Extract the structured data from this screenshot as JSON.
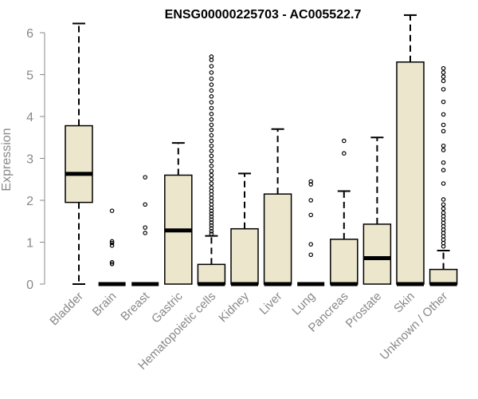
{
  "chart_data": {
    "type": "boxplot",
    "title": "ENSG00000225703 - AC005522.7",
    "xlabel": "",
    "ylabel": "Expression",
    "ylim": [
      0,
      6.4
    ],
    "yticks": [
      0,
      1,
      2,
      3,
      4,
      5,
      6
    ],
    "box_fill": "#ece6cc",
    "box_stroke": "#000000",
    "categories": [
      "Bladder",
      "Brain",
      "Breast",
      "Gastric",
      "Hematopoietic cells",
      "Kidney",
      "Liver",
      "Lung",
      "Pancreas",
      "Prostate",
      "Skin",
      "Unknown / Other"
    ],
    "boxes": [
      {
        "min": 0,
        "q1": 1.95,
        "median": 2.63,
        "q3": 3.78,
        "max": 6.22,
        "outliers": []
      },
      {
        "min": 0,
        "q1": 0,
        "median": 0,
        "q3": 0,
        "max": 0,
        "outliers": [
          0.48,
          0.52,
          0.92,
          0.98,
          1.02,
          1.75
        ]
      },
      {
        "min": 0,
        "q1": 0,
        "median": 0,
        "q3": 0,
        "max": 0,
        "outliers": [
          1.22,
          1.35,
          1.9,
          2.55
        ]
      },
      {
        "min": 0,
        "q1": 0,
        "median": 1.28,
        "q3": 2.6,
        "max": 3.37,
        "outliers": []
      },
      {
        "min": 0,
        "q1": 0,
        "median": 0,
        "q3": 0.47,
        "max": 1.15,
        "outliers": [
          1.2,
          1.26,
          1.33,
          1.4,
          1.47,
          1.54,
          1.61,
          1.68,
          1.75,
          1.82,
          1.9,
          1.98,
          2.06,
          2.14,
          2.22,
          2.3,
          2.4,
          2.5,
          2.6,
          2.7,
          2.82,
          2.94,
          3.06,
          3.18,
          3.3,
          3.42,
          3.55,
          3.68,
          3.8,
          3.93,
          4.06,
          4.2,
          4.34,
          4.48,
          4.62,
          4.76,
          4.9,
          5.05,
          5.2,
          5.35,
          5.43
        ]
      },
      {
        "min": 0,
        "q1": 0,
        "median": 0,
        "q3": 1.32,
        "max": 2.64,
        "outliers": []
      },
      {
        "min": 0,
        "q1": 0,
        "median": 0,
        "q3": 2.15,
        "max": 3.7,
        "outliers": []
      },
      {
        "min": 0,
        "q1": 0,
        "median": 0,
        "q3": 0,
        "max": 0,
        "outliers": [
          0.7,
          0.95,
          1.65,
          2.0,
          2.38,
          2.45
        ]
      },
      {
        "min": 0,
        "q1": 0,
        "median": 0,
        "q3": 1.07,
        "max": 2.22,
        "outliers": [
          3.12,
          3.42
        ]
      },
      {
        "min": 0,
        "q1": 0,
        "median": 0.62,
        "q3": 1.43,
        "max": 3.5,
        "outliers": []
      },
      {
        "min": 0,
        "q1": 0,
        "median": 0,
        "q3": 5.3,
        "max": 6.42,
        "outliers": []
      },
      {
        "min": 0,
        "q1": 0,
        "median": 0,
        "q3": 0.35,
        "max": 0.8,
        "outliers": [
          0.9,
          0.98,
          1.06,
          1.14,
          1.22,
          1.3,
          1.38,
          1.46,
          1.54,
          1.62,
          1.7,
          1.8,
          1.9,
          2.02,
          2.4,
          2.72,
          2.9,
          3.2,
          3.3,
          3.65,
          3.8,
          4.05,
          4.35,
          4.65,
          4.85,
          4.95,
          5.05,
          5.15
        ]
      }
    ],
    "grid": false,
    "legend": "none"
  }
}
